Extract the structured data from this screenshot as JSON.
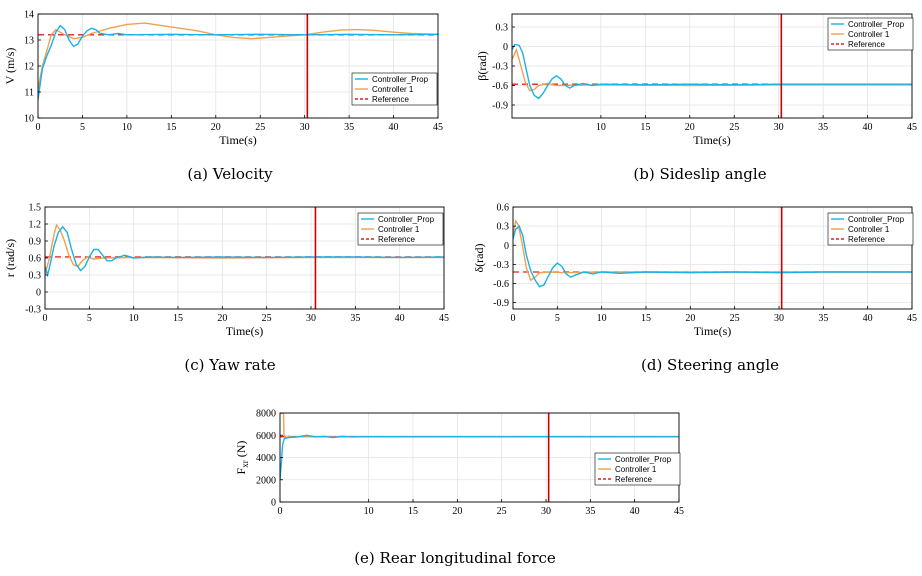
{
  "colors": {
    "controller_prop": "#1ab2e8",
    "controller_1": "#f0a050",
    "reference": "#e02020",
    "marker_line": "#cc0000",
    "grid": "#e3e3e3"
  },
  "legend": {
    "entries": [
      "Controller_Prop",
      "Controller 1",
      "Reference"
    ]
  },
  "captions": {
    "a": "(a) Velocity",
    "b": "(b) Sideslip angle",
    "c": "(c) Yaw rate",
    "d": "(d) Steering angle",
    "e": "(e) Rear longitudinal force"
  },
  "chart_data": [
    {
      "id": "a",
      "type": "line",
      "xlabel": "Time(s)",
      "ylabel": "V (m/s)",
      "xlim": [
        0,
        45
      ],
      "ylim": [
        10,
        14
      ],
      "xticks": [
        0,
        5,
        10,
        15,
        20,
        25,
        30,
        35,
        40,
        45
      ],
      "yticks": [
        10,
        11,
        12,
        13,
        14
      ],
      "grid": true,
      "legend_position": "center-right",
      "marker_x": 30.3,
      "series": [
        {
          "name": "Controller_Prop",
          "style": "solid",
          "points": [
            [
              0,
              10.7
            ],
            [
              0.5,
              11.9
            ],
            [
              1,
              12.4
            ],
            [
              1.5,
              12.8
            ],
            [
              2,
              13.3
            ],
            [
              2.5,
              13.55
            ],
            [
              3,
              13.4
            ],
            [
              3.5,
              13.0
            ],
            [
              4,
              12.75
            ],
            [
              4.5,
              12.85
            ],
            [
              5,
              13.15
            ],
            [
              5.5,
              13.35
            ],
            [
              6,
              13.45
            ],
            [
              6.5,
              13.4
            ],
            [
              7,
              13.25
            ],
            [
              8,
              13.2
            ],
            [
              9,
              13.25
            ],
            [
              10,
              13.2
            ],
            [
              15,
              13.22
            ],
            [
              20,
              13.2
            ],
            [
              25,
              13.22
            ],
            [
              30,
              13.2
            ],
            [
              35,
              13.22
            ],
            [
              40,
              13.2
            ],
            [
              45,
              13.22
            ]
          ]
        },
        {
          "name": "Controller 1",
          "style": "solid",
          "points": [
            [
              0,
              11.1
            ],
            [
              0.5,
              12.0
            ],
            [
              1,
              12.6
            ],
            [
              1.5,
              13.2
            ],
            [
              2,
              13.4
            ],
            [
              3,
              13.2
            ],
            [
              4,
              13.05
            ],
            [
              5,
              13.1
            ],
            [
              6,
              13.25
            ],
            [
              8,
              13.45
            ],
            [
              10,
              13.6
            ],
            [
              12,
              13.65
            ],
            [
              14,
              13.55
            ],
            [
              16,
              13.45
            ],
            [
              18,
              13.35
            ],
            [
              20,
              13.2
            ],
            [
              22,
              13.1
            ],
            [
              24,
              13.05
            ],
            [
              26,
              13.1
            ],
            [
              28,
              13.15
            ],
            [
              30,
              13.2
            ],
            [
              32,
              13.3
            ],
            [
              34,
              13.38
            ],
            [
              36,
              13.4
            ],
            [
              38,
              13.37
            ],
            [
              40,
              13.3
            ],
            [
              42,
              13.25
            ],
            [
              45,
              13.22
            ]
          ]
        },
        {
          "name": "Reference",
          "style": "dashed",
          "points": [
            [
              0,
              13.2
            ],
            [
              45,
              13.2
            ]
          ]
        }
      ]
    },
    {
      "id": "b",
      "type": "line",
      "xlabel": "Time(s)",
      "ylabel": "β(rad)",
      "xlim": [
        0,
        45
      ],
      "ylim": [
        -1.1,
        0.5
      ],
      "xticks": [
        10,
        15,
        20,
        25,
        30,
        35,
        40,
        45
      ],
      "yticks": [
        -0.9,
        -0.6,
        -0.3,
        0,
        0.3
      ],
      "grid": true,
      "legend_position": "top-right",
      "marker_x": 30.3,
      "series": [
        {
          "name": "Controller_Prop",
          "style": "solid",
          "points": [
            [
              0,
              -0.05
            ],
            [
              0.3,
              0.03
            ],
            [
              0.8,
              0.02
            ],
            [
              1.2,
              -0.1
            ],
            [
              1.6,
              -0.35
            ],
            [
              2,
              -0.6
            ],
            [
              2.5,
              -0.75
            ],
            [
              3,
              -0.8
            ],
            [
              3.5,
              -0.72
            ],
            [
              4,
              -0.6
            ],
            [
              4.5,
              -0.5
            ],
            [
              5,
              -0.45
            ],
            [
              5.5,
              -0.5
            ],
            [
              6,
              -0.6
            ],
            [
              6.5,
              -0.64
            ],
            [
              7,
              -0.6
            ],
            [
              8,
              -0.57
            ],
            [
              9,
              -0.6
            ],
            [
              10,
              -0.58
            ],
            [
              15,
              -0.59
            ],
            [
              20,
              -0.58
            ],
            [
              25,
              -0.59
            ],
            [
              30,
              -0.58
            ],
            [
              35,
              -0.58
            ],
            [
              40,
              -0.58
            ],
            [
              45,
              -0.58
            ]
          ]
        },
        {
          "name": "Controller 1",
          "style": "solid",
          "points": [
            [
              0,
              -0.2
            ],
            [
              0.5,
              -0.05
            ],
            [
              1,
              -0.3
            ],
            [
              1.5,
              -0.55
            ],
            [
              2,
              -0.68
            ],
            [
              2.5,
              -0.66
            ],
            [
              3,
              -0.6
            ],
            [
              4,
              -0.57
            ],
            [
              5,
              -0.6
            ],
            [
              10,
              -0.59
            ],
            [
              20,
              -0.6
            ],
            [
              30,
              -0.59
            ],
            [
              45,
              -0.59
            ]
          ]
        },
        {
          "name": "Reference",
          "style": "dashed",
          "points": [
            [
              0,
              -0.58
            ],
            [
              45,
              -0.58
            ]
          ]
        }
      ]
    },
    {
      "id": "c",
      "type": "line",
      "xlabel": "Time(s)",
      "ylabel": "r (rad/s)",
      "xlim": [
        0,
        45
      ],
      "ylim": [
        -0.3,
        1.5
      ],
      "xticks": [
        0,
        5,
        10,
        15,
        20,
        25,
        30,
        35,
        40,
        45
      ],
      "yticks": [
        -0.3,
        0,
        0.3,
        0.6,
        0.9,
        1.2,
        1.5
      ],
      "grid": true,
      "legend_position": "top-right",
      "marker_x": 30.5,
      "series": [
        {
          "name": "Controller_Prop",
          "style": "solid",
          "points": [
            [
              0,
              0.45
            ],
            [
              0.3,
              0.3
            ],
            [
              0.6,
              0.5
            ],
            [
              1,
              0.8
            ],
            [
              1.5,
              1.05
            ],
            [
              2,
              1.15
            ],
            [
              2.5,
              1.05
            ],
            [
              3,
              0.75
            ],
            [
              3.5,
              0.5
            ],
            [
              4,
              0.38
            ],
            [
              4.5,
              0.45
            ],
            [
              5,
              0.62
            ],
            [
              5.5,
              0.75
            ],
            [
              6,
              0.75
            ],
            [
              6.5,
              0.65
            ],
            [
              7,
              0.55
            ],
            [
              7.5,
              0.55
            ],
            [
              8,
              0.6
            ],
            [
              9,
              0.65
            ],
            [
              10,
              0.6
            ],
            [
              12,
              0.62
            ],
            [
              15,
              0.61
            ],
            [
              20,
              0.62
            ],
            [
              25,
              0.61
            ],
            [
              30,
              0.62
            ],
            [
              35,
              0.62
            ],
            [
              40,
              0.61
            ],
            [
              45,
              0.62
            ]
          ]
        },
        {
          "name": "Controller 1",
          "style": "solid",
          "points": [
            [
              0,
              0.3
            ],
            [
              0.5,
              0.6
            ],
            [
              1,
              1.0
            ],
            [
              1.3,
              1.18
            ],
            [
              1.7,
              1.1
            ],
            [
              2.2,
              0.9
            ],
            [
              2.7,
              0.65
            ],
            [
              3.2,
              0.48
            ],
            [
              3.7,
              0.45
            ],
            [
              4.2,
              0.55
            ],
            [
              4.8,
              0.62
            ],
            [
              5.5,
              0.58
            ],
            [
              6.5,
              0.6
            ],
            [
              10,
              0.61
            ],
            [
              20,
              0.6
            ],
            [
              30,
              0.61
            ],
            [
              45,
              0.61
            ]
          ]
        },
        {
          "name": "Reference",
          "style": "dashed",
          "points": [
            [
              0,
              0.62
            ],
            [
              45,
              0.62
            ]
          ]
        }
      ]
    },
    {
      "id": "d",
      "type": "line",
      "xlabel": "Time(s)",
      "ylabel": "δ(rad)",
      "xlim": [
        0,
        45
      ],
      "ylim": [
        -1.0,
        0.6
      ],
      "xticks": [
        0,
        5,
        10,
        15,
        20,
        25,
        30,
        35,
        40,
        45
      ],
      "yticks": [
        -0.9,
        -0.6,
        -0.3,
        0,
        0.3,
        0.6
      ],
      "grid": true,
      "legend_position": "top-right",
      "marker_x": 30.3,
      "series": [
        {
          "name": "Controller_Prop",
          "style": "solid",
          "points": [
            [
              0,
              0.1
            ],
            [
              0.3,
              0.25
            ],
            [
              0.7,
              0.3
            ],
            [
              1.1,
              0.15
            ],
            [
              1.5,
              -0.15
            ],
            [
              2,
              -0.4
            ],
            [
              2.5,
              -0.55
            ],
            [
              3,
              -0.65
            ],
            [
              3.5,
              -0.62
            ],
            [
              4,
              -0.48
            ],
            [
              4.5,
              -0.35
            ],
            [
              5,
              -0.28
            ],
            [
              5.5,
              -0.33
            ],
            [
              6,
              -0.45
            ],
            [
              6.5,
              -0.5
            ],
            [
              7,
              -0.47
            ],
            [
              8,
              -0.42
            ],
            [
              9,
              -0.45
            ],
            [
              10,
              -0.42
            ],
            [
              12,
              -0.44
            ],
            [
              15,
              -0.42
            ],
            [
              20,
              -0.43
            ],
            [
              25,
              -0.42
            ],
            [
              30,
              -0.43
            ],
            [
              35,
              -0.42
            ],
            [
              40,
              -0.42
            ],
            [
              45,
              -0.42
            ]
          ]
        },
        {
          "name": "Controller 1",
          "style": "solid",
          "points": [
            [
              0,
              0.15
            ],
            [
              0.3,
              0.38
            ],
            [
              0.6,
              0.32
            ],
            [
              1,
              0.05
            ],
            [
              1.5,
              -0.35
            ],
            [
              2,
              -0.55
            ],
            [
              2.5,
              -0.5
            ],
            [
              3,
              -0.43
            ],
            [
              4,
              -0.42
            ],
            [
              6,
              -0.43
            ],
            [
              10,
              -0.42
            ],
            [
              20,
              -0.42
            ],
            [
              45,
              -0.42
            ]
          ]
        },
        {
          "name": "Reference",
          "style": "dashed",
          "points": [
            [
              0,
              -0.42
            ],
            [
              45,
              -0.42
            ]
          ]
        }
      ]
    },
    {
      "id": "e",
      "type": "line",
      "xlabel": "",
      "ylabel": "F",
      "ylabel_subscript": "xr",
      "ylabel_unit": " (N)",
      "xlim": [
        0,
        45
      ],
      "ylim": [
        0,
        8000
      ],
      "xticks": [
        0,
        10,
        15,
        20,
        25,
        30,
        35,
        40,
        45
      ],
      "yticks": [
        0,
        2000,
        4000,
        6000,
        8000
      ],
      "grid": true,
      "legend_position": "bottom-right",
      "marker_x": 30.3,
      "series": [
        {
          "name": "Controller_Prop",
          "style": "solid",
          "points": [
            [
              0,
              2000
            ],
            [
              0.15,
              3500
            ],
            [
              0.3,
              5200
            ],
            [
              0.5,
              5700
            ],
            [
              1,
              5800
            ],
            [
              2,
              5850
            ],
            [
              3,
              6000
            ],
            [
              4,
              5850
            ],
            [
              5,
              5900
            ],
            [
              6,
              5800
            ],
            [
              7,
              5900
            ],
            [
              8,
              5850
            ],
            [
              10,
              5870
            ],
            [
              15,
              5860
            ],
            [
              20,
              5870
            ],
            [
              25,
              5860
            ],
            [
              30,
              5870
            ],
            [
              35,
              5860
            ],
            [
              40,
              5860
            ],
            [
              45,
              5860
            ]
          ]
        },
        {
          "name": "Controller 1",
          "style": "solid",
          "points": [
            [
              0,
              8000
            ],
            [
              0.4,
              8000
            ],
            [
              0.45,
              6000
            ],
            [
              0.7,
              5800
            ],
            [
              1,
              5900
            ],
            [
              1.5,
              5850
            ],
            [
              2,
              5870
            ],
            [
              5,
              5860
            ],
            [
              10,
              5860
            ],
            [
              20,
              5860
            ],
            [
              30,
              5860
            ],
            [
              45,
              5860
            ]
          ]
        },
        {
          "name": "Reference",
          "style": "dashed",
          "points": [
            [
              0,
              5870
            ],
            [
              45,
              5870
            ]
          ]
        }
      ]
    }
  ]
}
